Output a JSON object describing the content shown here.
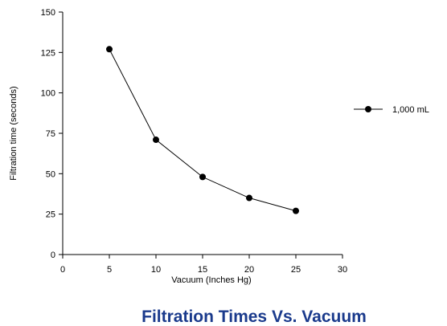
{
  "chart_data": {
    "type": "line",
    "title": "Filtration Times Vs. Vacuum",
    "xlabel": "Vacuum (Inches Hg)",
    "ylabel": "Filtration time (seconds)",
    "xlim": [
      0,
      30
    ],
    "ylim": [
      0,
      150
    ],
    "xticks": [
      "0",
      "5",
      "10",
      "15",
      "20",
      "25",
      "30"
    ],
    "yticks": [
      "0",
      "25",
      "50",
      "75",
      "100",
      "125",
      "150"
    ],
    "grid": false,
    "legend_position": "right",
    "title_color": "#1a3a8c",
    "series": [
      {
        "name": "1,000 mL",
        "x": [
          5,
          10,
          15,
          20,
          25
        ],
        "y": [
          127,
          71,
          48,
          35,
          27
        ],
        "color": "#000000",
        "marker": "circle"
      }
    ]
  }
}
